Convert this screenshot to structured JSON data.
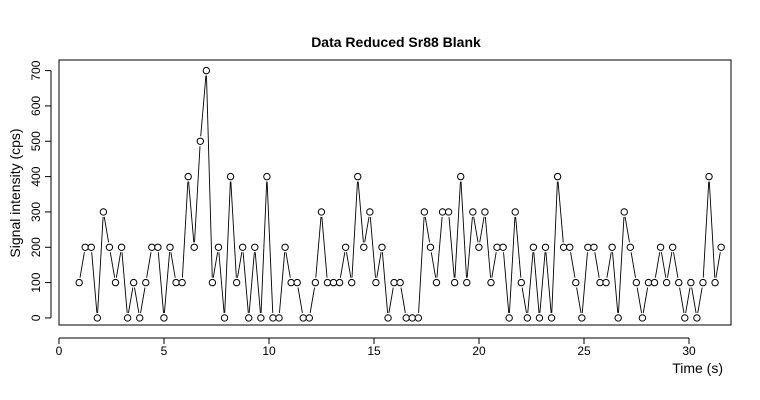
{
  "chart_data": {
    "type": "line",
    "style": "points-and-lines",
    "title": "Data Reduced Sr88 Blank",
    "xlabel": "Time (s)",
    "ylabel": "Signal intensity (cps)",
    "xlim": [
      0,
      32
    ],
    "ylim": [
      -20,
      730
    ],
    "xticks": [
      0,
      5,
      10,
      15,
      20,
      25,
      30
    ],
    "yticks": [
      0,
      100,
      200,
      300,
      400,
      500,
      600,
      700
    ],
    "x_start": 0.96,
    "x_step": 0.2884,
    "values": [
      100,
      200,
      200,
      0,
      300,
      200,
      100,
      200,
      0,
      100,
      0,
      100,
      200,
      200,
      0,
      200,
      100,
      100,
      400,
      200,
      500,
      700,
      100,
      200,
      0,
      400,
      100,
      200,
      0,
      200,
      0,
      400,
      0,
      0,
      200,
      100,
      100,
      0,
      0,
      100,
      300,
      100,
      100,
      100,
      200,
      100,
      400,
      200,
      300,
      100,
      200,
      0,
      100,
      100,
      0,
      0,
      0,
      300,
      200,
      100,
      300,
      300,
      100,
      400,
      100,
      300,
      200,
      300,
      100,
      200,
      200,
      0,
      300,
      100,
      0,
      200,
      0,
      200,
      0,
      400,
      200,
      200,
      100,
      0,
      200,
      200,
      100,
      100,
      200,
      0,
      300,
      200,
      100,
      0,
      100,
      100,
      200,
      100,
      200,
      100,
      0,
      100,
      0,
      100,
      400,
      100,
      200
    ]
  }
}
